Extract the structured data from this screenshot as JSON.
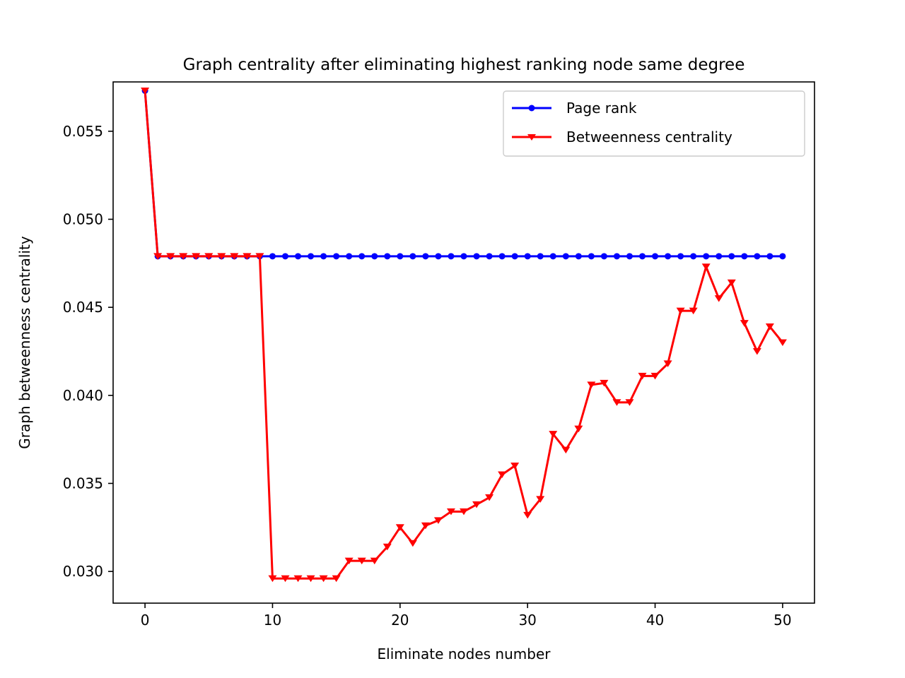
{
  "chart_data": {
    "type": "line",
    "title": "Graph centrality after eliminating highest ranking node same degree",
    "xlabel": "Eliminate nodes number",
    "ylabel": "Graph betweenness centrality",
    "xlim": [
      -2.5,
      52.5
    ],
    "ylim": [
      0.0282,
      0.0578
    ],
    "x_ticks": [
      0,
      10,
      20,
      30,
      40,
      50
    ],
    "x_tick_labels": [
      "0",
      "10",
      "20",
      "30",
      "40",
      "50"
    ],
    "y_ticks": [
      0.03,
      0.035,
      0.04,
      0.045,
      0.05,
      0.055
    ],
    "y_tick_labels": [
      "0.030",
      "0.035",
      "0.040",
      "0.045",
      "0.050",
      "0.055"
    ],
    "grid": false,
    "legend_position": "top-right",
    "x": [
      0,
      1,
      2,
      3,
      4,
      5,
      6,
      7,
      8,
      9,
      10,
      11,
      12,
      13,
      14,
      15,
      16,
      17,
      18,
      19,
      20,
      21,
      22,
      23,
      24,
      25,
      26,
      27,
      28,
      29,
      30,
      31,
      32,
      33,
      34,
      35,
      36,
      37,
      38,
      39,
      40,
      41,
      42,
      43,
      44,
      45,
      46,
      47,
      48,
      49,
      50
    ],
    "series": [
      {
        "name": "Page rank",
        "color": "#0000ff",
        "marker": "circle",
        "values": [
          0.0573,
          0.0479,
          0.0479,
          0.0479,
          0.0479,
          0.0479,
          0.0479,
          0.0479,
          0.0479,
          0.0479,
          0.0479,
          0.0479,
          0.0479,
          0.0479,
          0.0479,
          0.0479,
          0.0479,
          0.0479,
          0.0479,
          0.0479,
          0.0479,
          0.0479,
          0.0479,
          0.0479,
          0.0479,
          0.0479,
          0.0479,
          0.0479,
          0.0479,
          0.0479,
          0.0479,
          0.0479,
          0.0479,
          0.0479,
          0.0479,
          0.0479,
          0.0479,
          0.0479,
          0.0479,
          0.0479,
          0.0479,
          0.0479,
          0.0479,
          0.0479,
          0.0479,
          0.0479,
          0.0479,
          0.0479,
          0.0479,
          0.0479,
          0.0479
        ]
      },
      {
        "name": "Betweenness centrality",
        "color": "#ff0000",
        "marker": "triangle-down",
        "values": [
          0.0573,
          0.0479,
          0.0479,
          0.0479,
          0.0479,
          0.0479,
          0.0479,
          0.0479,
          0.0479,
          0.0479,
          0.0296,
          0.0296,
          0.0296,
          0.0296,
          0.0296,
          0.0296,
          0.0306,
          0.0306,
          0.0306,
          0.0314,
          0.0325,
          0.0316,
          0.0326,
          0.0329,
          0.0334,
          0.0334,
          0.0338,
          0.0342,
          0.0355,
          0.036,
          0.0332,
          0.0341,
          0.0378,
          0.0369,
          0.0381,
          0.0406,
          0.0407,
          0.0396,
          0.0396,
          0.0411,
          0.0411,
          0.0418,
          0.0448,
          0.0448,
          0.0473,
          0.0455,
          0.0464,
          0.0441,
          0.0425,
          0.0439,
          0.043
        ]
      }
    ]
  }
}
